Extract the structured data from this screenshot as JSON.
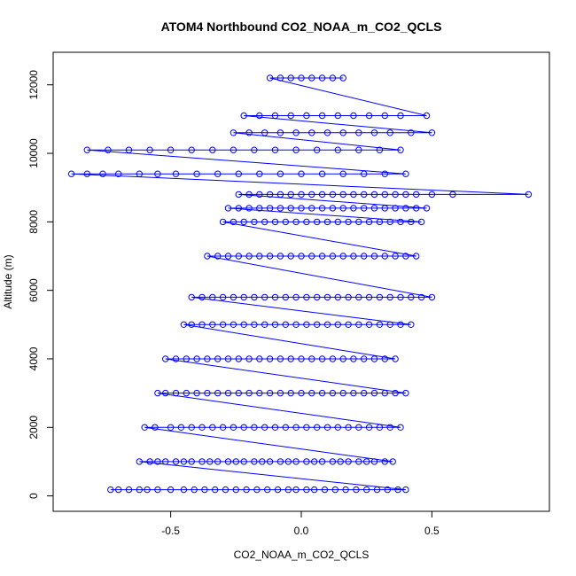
{
  "chart_data": {
    "type": "scatter",
    "title": "ATOM4 Northbound CO2_NOAA_m_CO2_QCLS",
    "xlabel": "CO2_NOAA_m_CO2_QCLS",
    "ylabel": "Altitude (m)",
    "xlim": [
      -0.95,
      0.95
    ],
    "ylim": [
      -450,
      12950
    ],
    "x_ticks": [
      -0.5,
      0.0,
      0.5
    ],
    "x_tick_labels": [
      "-0.5",
      "0.0",
      "0.5"
    ],
    "y_ticks": [
      0,
      2000,
      4000,
      6000,
      8000,
      10000,
      12000
    ],
    "y_tick_labels": [
      "0",
      "2000",
      "4000",
      "6000",
      "8000",
      "10000",
      "12000"
    ],
    "grid": false,
    "legend": "none",
    "style": "points connected by lines, open circles",
    "color": "#0000ff",
    "series": [
      {
        "x": [
          -0.73,
          -0.7,
          -0.66,
          -0.62,
          -0.59,
          -0.55,
          -0.5,
          -0.45,
          -0.41,
          -0.37,
          -0.33,
          -0.29,
          -0.25,
          -0.21,
          -0.17,
          -0.13,
          -0.09,
          -0.05,
          -0.02,
          0.02,
          0.05,
          0.09,
          0.13,
          0.17,
          0.21,
          0.25,
          0.29,
          0.33,
          0.37,
          0.4,
          -0.62,
          -0.58,
          -0.55,
          -0.52,
          -0.48,
          -0.45,
          -0.42,
          -0.38,
          -0.35,
          -0.32,
          -0.28,
          -0.25,
          -0.22,
          -0.18,
          -0.15,
          -0.12,
          -0.08,
          -0.05,
          -0.02,
          0.02,
          0.05,
          0.08,
          0.12,
          0.15,
          0.18,
          0.22,
          0.25,
          0.28,
          0.32,
          0.35,
          -0.6,
          -0.56,
          -0.5,
          -0.46,
          -0.42,
          -0.38,
          -0.34,
          -0.3,
          -0.26,
          -0.22,
          -0.18,
          -0.14,
          -0.1,
          -0.06,
          -0.02,
          0.02,
          0.06,
          0.1,
          0.14,
          0.18,
          0.22,
          0.26,
          0.3,
          0.34,
          0.38,
          -0.55,
          -0.52,
          -0.48,
          -0.44,
          -0.4,
          -0.36,
          -0.32,
          -0.28,
          -0.24,
          -0.2,
          -0.16,
          -0.12,
          -0.08,
          -0.04,
          0.0,
          0.04,
          0.08,
          0.12,
          0.16,
          0.2,
          0.24,
          0.28,
          0.32,
          0.36,
          0.4,
          -0.52,
          -0.48,
          -0.44,
          -0.4,
          -0.36,
          -0.32,
          -0.28,
          -0.24,
          -0.2,
          -0.16,
          -0.12,
          -0.08,
          -0.04,
          0.0,
          0.04,
          0.08,
          0.12,
          0.16,
          0.2,
          0.24,
          0.28,
          0.32,
          0.36,
          -0.45,
          -0.42,
          -0.38,
          -0.34,
          -0.3,
          -0.26,
          -0.22,
          -0.18,
          -0.14,
          -0.1,
          -0.06,
          -0.02,
          0.02,
          0.06,
          0.1,
          0.14,
          0.18,
          0.22,
          0.26,
          0.3,
          0.34,
          0.38,
          0.42,
          -0.42,
          -0.38,
          -0.34,
          -0.3,
          -0.26,
          -0.22,
          -0.18,
          -0.14,
          -0.1,
          -0.06,
          -0.02,
          0.02,
          0.06,
          0.1,
          0.14,
          0.18,
          0.22,
          0.26,
          0.3,
          0.34,
          0.38,
          0.42,
          0.46,
          0.5,
          -0.36,
          -0.32,
          -0.28,
          -0.24,
          -0.2,
          -0.16,
          -0.12,
          -0.08,
          -0.04,
          0.0,
          0.04,
          0.08,
          0.12,
          0.16,
          0.2,
          0.24,
          0.28,
          0.32,
          0.36,
          0.4,
          0.44,
          -0.3,
          -0.26,
          -0.22,
          -0.18,
          -0.14,
          -0.1,
          -0.06,
          -0.02,
          0.02,
          0.06,
          0.1,
          0.14,
          0.18,
          0.22,
          0.26,
          0.3,
          0.34,
          0.38,
          0.42,
          0.46,
          -0.28,
          -0.24,
          -0.2,
          -0.16,
          -0.12,
          -0.08,
          -0.04,
          0.0,
          0.04,
          0.08,
          0.12,
          0.16,
          0.2,
          0.24,
          0.28,
          0.32,
          0.36,
          0.4,
          0.44,
          0.48,
          -0.24,
          -0.2,
          -0.16,
          -0.12,
          -0.08,
          -0.04,
          0.0,
          0.04,
          0.08,
          0.12,
          0.16,
          0.2,
          0.24,
          0.28,
          0.32,
          0.36,
          0.4,
          0.44,
          0.5,
          0.58,
          0.87,
          -0.88,
          -0.82,
          -0.76,
          -0.7,
          -0.62,
          -0.55,
          -0.48,
          -0.4,
          -0.32,
          -0.24,
          -0.16,
          -0.08,
          0.0,
          0.08,
          0.16,
          0.24,
          0.32,
          0.4,
          -0.82,
          -0.74,
          -0.66,
          -0.58,
          -0.5,
          -0.42,
          -0.34,
          -0.26,
          -0.18,
          -0.1,
          -0.02,
          0.06,
          0.14,
          0.22,
          0.3,
          0.38,
          -0.26,
          -0.2,
          -0.14,
          -0.08,
          -0.02,
          0.04,
          0.1,
          0.16,
          0.22,
          0.28,
          0.34,
          0.42,
          0.5,
          -0.22,
          -0.16,
          -0.1,
          -0.04,
          0.02,
          0.08,
          0.14,
          0.2,
          0.26,
          0.32,
          0.38,
          0.48,
          -0.12,
          -0.08,
          -0.04,
          0.0,
          0.04,
          0.08,
          0.12,
          0.16
        ],
        "y": [
          180,
          180,
          180,
          180,
          180,
          180,
          180,
          180,
          180,
          180,
          180,
          180,
          180,
          180,
          180,
          180,
          180,
          180,
          180,
          180,
          180,
          180,
          180,
          180,
          180,
          180,
          180,
          180,
          180,
          180,
          1000,
          1000,
          1000,
          1000,
          1000,
          1000,
          1000,
          1000,
          1000,
          1000,
          1000,
          1000,
          1000,
          1000,
          1000,
          1000,
          1000,
          1000,
          1000,
          1000,
          1000,
          1000,
          1000,
          1000,
          1000,
          1000,
          1000,
          1000,
          1000,
          1000,
          2000,
          2000,
          2000,
          2000,
          2000,
          2000,
          2000,
          2000,
          2000,
          2000,
          2000,
          2000,
          2000,
          2000,
          2000,
          2000,
          2000,
          2000,
          2000,
          2000,
          2000,
          2000,
          2000,
          2000,
          2000,
          3000,
          3000,
          3000,
          3000,
          3000,
          3000,
          3000,
          3000,
          3000,
          3000,
          3000,
          3000,
          3000,
          3000,
          3000,
          3000,
          3000,
          3000,
          3000,
          3000,
          3000,
          3000,
          3000,
          3000,
          3000,
          4000,
          4000,
          4000,
          4000,
          4000,
          4000,
          4000,
          4000,
          4000,
          4000,
          4000,
          4000,
          4000,
          4000,
          4000,
          4000,
          4000,
          4000,
          4000,
          4000,
          4000,
          4000,
          4000,
          5000,
          5000,
          5000,
          5000,
          5000,
          5000,
          5000,
          5000,
          5000,
          5000,
          5000,
          5000,
          5000,
          5000,
          5000,
          5000,
          5000,
          5000,
          5000,
          5000,
          5000,
          5000,
          5000,
          5800,
          5800,
          5800,
          5800,
          5800,
          5800,
          5800,
          5800,
          5800,
          5800,
          5800,
          5800,
          5800,
          5800,
          5800,
          5800,
          5800,
          5800,
          5800,
          5800,
          5800,
          5800,
          5800,
          5800,
          7000,
          7000,
          7000,
          7000,
          7000,
          7000,
          7000,
          7000,
          7000,
          7000,
          7000,
          7000,
          7000,
          7000,
          7000,
          7000,
          7000,
          7000,
          7000,
          7000,
          7000,
          8000,
          8000,
          8000,
          8000,
          8000,
          8000,
          8000,
          8000,
          8000,
          8000,
          8000,
          8000,
          8000,
          8000,
          8000,
          8000,
          8000,
          8000,
          8000,
          8000,
          8400,
          8400,
          8400,
          8400,
          8400,
          8400,
          8400,
          8400,
          8400,
          8400,
          8400,
          8400,
          8400,
          8400,
          8400,
          8400,
          8400,
          8400,
          8400,
          8400,
          8800,
          8800,
          8800,
          8800,
          8800,
          8800,
          8800,
          8800,
          8800,
          8800,
          8800,
          8800,
          8800,
          8800,
          8800,
          8800,
          8800,
          8800,
          8800,
          8800,
          8800,
          9400,
          9400,
          9400,
          9400,
          9400,
          9400,
          9400,
          9400,
          9400,
          9400,
          9400,
          9400,
          9400,
          9400,
          9400,
          9400,
          9400,
          9400,
          10100,
          10100,
          10100,
          10100,
          10100,
          10100,
          10100,
          10100,
          10100,
          10100,
          10100,
          10100,
          10100,
          10100,
          10100,
          10100,
          10600,
          10600,
          10600,
          10600,
          10600,
          10600,
          10600,
          10600,
          10600,
          10600,
          10600,
          10600,
          10600,
          11100,
          11100,
          11100,
          11100,
          11100,
          11100,
          11100,
          11100,
          11100,
          11100,
          11100,
          11100,
          12200,
          12200,
          12200,
          12200,
          12200,
          12200,
          12200,
          12200
        ]
      }
    ]
  }
}
